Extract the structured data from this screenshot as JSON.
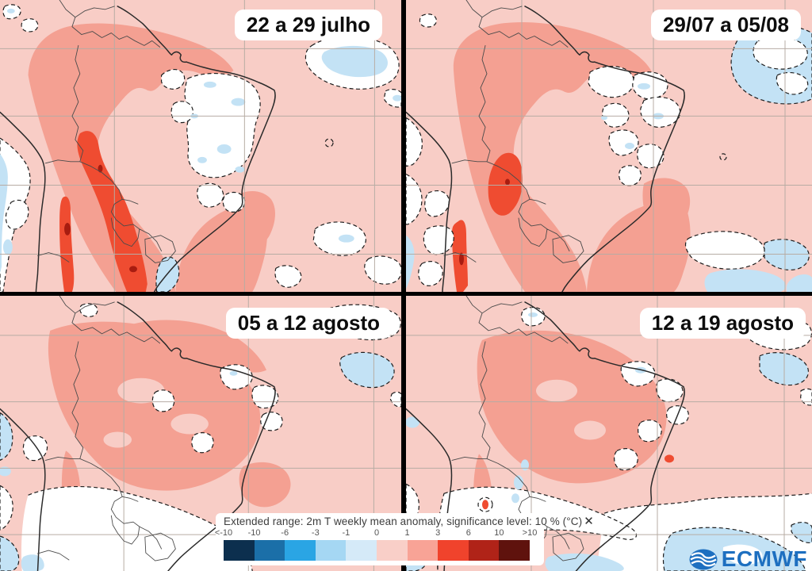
{
  "panels": [
    {
      "title": "22 a 29 julho"
    },
    {
      "title": "29/07 a 05/08"
    },
    {
      "title": "05 a 12 agosto"
    },
    {
      "title": "12 a 19 agosto"
    }
  ],
  "legend": {
    "title": "Extended range: 2m T weekly mean anomaly, significance level: 10 % (°C)",
    "close_icon": "✕",
    "tick_labels": [
      "<-10",
      "-10",
      "-6",
      "-3",
      "-1",
      "0",
      "1",
      "3",
      "6",
      "10",
      ">10"
    ],
    "colors": [
      "#0c2f4e",
      "#1b6fa8",
      "#2aa5e4",
      "#a5d7f3",
      "#d5eaf8",
      "#f9cfc8",
      "#f8a396",
      "#f0432c",
      "#b02318",
      "#5f120d"
    ]
  },
  "branding": {
    "logo_text": "ECMWF",
    "logo_color": "#1d6fc0",
    "logo_icon": "ecmwf-globe-icon"
  },
  "map_colors": {
    "warm_0_1": "#f8cdc6",
    "warm_1_3": "#f4a092",
    "warm_3_6": "#ef4c31",
    "warm_dark_spot": "#a81c10",
    "cool_patch": "#c3e2f5",
    "cool_patch_light": "#dceefa",
    "grid_line": "#b7aca4",
    "coastline": "#2a2a2a",
    "divider": "#000000"
  }
}
